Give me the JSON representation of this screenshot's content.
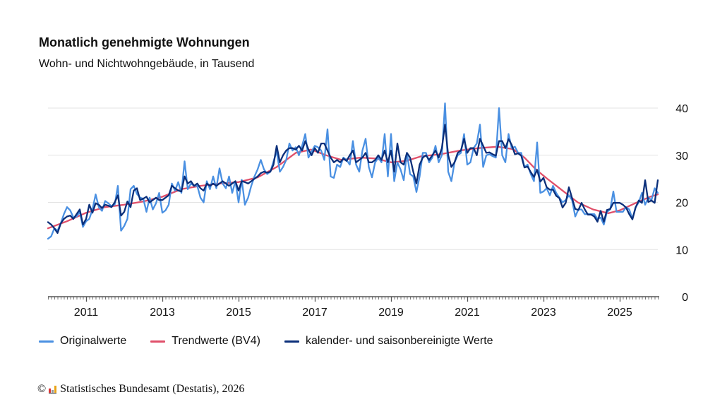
{
  "colors": {
    "original": "#4a90e2",
    "trend": "#e0506a",
    "adjusted": "#0b2f7a",
    "grid": "#e3e3e3",
    "axis": "#333333"
  },
  "chart_data": {
    "type": "line",
    "title": "Monatlich genehmigte Wohnungen",
    "subtitle": "Wohn- und Nichtwohngebäude, in Tausend",
    "xlabel": "",
    "ylabel": "",
    "xlim": [
      2010.0,
      2026.0
    ],
    "ylim": [
      0,
      40
    ],
    "y_ticks": [
      0,
      10,
      20,
      30,
      40
    ],
    "x_tick_labels": [
      "2011",
      "2013",
      "2015",
      "2017",
      "2019",
      "2021",
      "2023",
      "2025"
    ],
    "x_tick_years": [
      2011,
      2013,
      2015,
      2017,
      2019,
      2021,
      2023,
      2025
    ],
    "grid": true,
    "legend_position": "bottom-left",
    "start": "2010-01",
    "frequency": "monthly",
    "series": [
      {
        "name": "Originalwerte",
        "key": "original",
        "values": [
          12.3,
          12.8,
          14.5,
          14,
          15.5,
          17.5,
          19,
          18.3,
          16.8,
          17,
          18,
          14.8,
          16,
          16.5,
          18.5,
          21.7,
          19,
          18.2,
          20.3,
          19.8,
          19.2,
          19.5,
          23.5,
          14,
          15,
          16.5,
          22.8,
          23.5,
          21.8,
          21,
          20.8,
          18,
          21,
          18.5,
          19.8,
          22,
          17.8,
          18.3,
          19.5,
          24,
          22.5,
          24.3,
          22,
          28.7,
          22.8,
          24,
          23.5,
          23.5,
          21,
          20,
          24.5,
          22.8,
          25.5,
          23,
          27.2,
          24,
          23,
          25.5,
          22,
          24.5,
          20,
          24.8,
          19.5,
          21,
          23.5,
          25.5,
          27,
          29,
          27,
          26,
          26.5,
          28.7,
          30.8,
          26.5,
          27.5,
          29,
          32.5,
          31,
          31.7,
          30,
          32,
          34.5,
          29.5,
          30.8,
          32,
          31.7,
          31,
          29,
          35.5,
          25.5,
          25.2,
          28,
          27.5,
          29.5,
          29,
          28,
          33,
          28,
          26.5,
          31,
          33.5,
          27.5,
          25.3,
          28.5,
          29.5,
          28.5,
          34.5,
          25.5,
          34.5,
          24.5,
          28.5,
          27,
          24.7,
          30.5,
          26,
          25.5,
          22.2,
          25.5,
          30.5,
          30.5,
          28.5,
          29.5,
          32,
          28.5,
          30,
          41,
          26.5,
          24.5,
          28.5,
          30,
          30.5,
          34.5,
          28,
          28.5,
          31.5,
          32.5,
          36.5,
          27.5,
          30,
          30.2,
          29.8,
          29.5,
          40,
          30,
          28.5,
          34.5,
          31.5,
          31.8,
          30.5,
          30.5,
          27.5,
          28,
          26,
          24.5,
          32.7,
          22,
          22.3,
          23,
          21.5,
          23.5,
          22,
          21,
          20,
          20.5,
          21.5,
          20.5,
          17,
          18.5,
          18.5,
          17.5,
          17.5,
          17.5,
          17.5,
          16.5,
          16.8,
          15.3,
          18,
          18.5,
          22.3,
          18,
          18,
          18,
          19,
          18.5,
          16.5,
          19,
          20,
          22,
          19.5,
          21,
          20.5,
          23,
          22
        ]
      },
      {
        "name": "Trendwerte (BV4)",
        "key": "trend",
        "points": [
          [
            2010.0,
            14.5
          ],
          [
            2010.5,
            16
          ],
          [
            2011.0,
            17.8
          ],
          [
            2011.5,
            19
          ],
          [
            2012.0,
            19.5
          ],
          [
            2012.5,
            20.2
          ],
          [
            2013.0,
            21.2
          ],
          [
            2013.5,
            22.8
          ],
          [
            2014.0,
            23.5
          ],
          [
            2014.5,
            24
          ],
          [
            2015.0,
            24.3
          ],
          [
            2015.5,
            25.3
          ],
          [
            2016.0,
            27.5
          ],
          [
            2016.5,
            30.5
          ],
          [
            2016.9,
            31.2
          ],
          [
            2017.3,
            30
          ],
          [
            2017.7,
            29
          ],
          [
            2018.2,
            29.5
          ],
          [
            2018.6,
            29.3
          ],
          [
            2019.0,
            28.5
          ],
          [
            2019.4,
            28.8
          ],
          [
            2019.8,
            29.8
          ],
          [
            2020.3,
            30.2
          ],
          [
            2020.8,
            31
          ],
          [
            2021.3,
            31.5
          ],
          [
            2021.8,
            31.8
          ],
          [
            2022.2,
            31.3
          ],
          [
            2022.5,
            29.5
          ],
          [
            2022.8,
            27
          ],
          [
            2023.1,
            25
          ],
          [
            2023.5,
            22.5
          ],
          [
            2023.9,
            20
          ],
          [
            2024.3,
            18.5
          ],
          [
            2024.7,
            17.7
          ],
          [
            2025.0,
            18.3
          ],
          [
            2025.4,
            19.8
          ],
          [
            2025.8,
            21.2
          ],
          [
            2026.0,
            21.7
          ]
        ]
      },
      {
        "name": "kalender- und saisonbereinigte Werte",
        "key": "adjusted",
        "values": [
          15.8,
          15.3,
          14.5,
          13.5,
          15.5,
          16.5,
          17,
          17.2,
          16.5,
          17.5,
          18.5,
          15.3,
          16.5,
          19.5,
          17.8,
          19.8,
          19.5,
          18.8,
          19.5,
          19.3,
          19,
          20,
          21.5,
          17.2,
          18,
          20.2,
          19,
          22.5,
          23,
          20.5,
          20.8,
          21.2,
          20,
          20.5,
          21,
          20.5,
          20.5,
          21,
          21.5,
          23.5,
          23,
          22.5,
          22.3,
          25.5,
          24,
          24.5,
          23.5,
          24,
          23,
          22.5,
          24,
          23.5,
          24,
          23.5,
          24,
          24.5,
          24,
          23.5,
          24,
          24.5,
          22.5,
          24.5,
          24.3,
          24,
          24.5,
          25,
          25.5,
          26.2,
          26.5,
          26.3,
          26.5,
          28,
          32,
          28.5,
          30,
          31,
          31.5,
          31.5,
          31.2,
          32,
          31,
          33,
          31.2,
          30,
          31.5,
          30.5,
          32.5,
          32.5,
          31,
          29.5,
          28.5,
          29,
          28.5,
          29.3,
          28.8,
          30,
          31,
          28.5,
          29,
          29.5,
          30.5,
          28.5,
          28.5,
          29,
          30,
          29,
          31,
          28.5,
          31,
          26.5,
          32.5,
          28.5,
          28,
          30.5,
          29.5,
          26.5,
          24,
          28,
          29.5,
          30,
          29,
          30,
          31,
          29.5,
          31.5,
          36.5,
          30,
          27.5,
          28.5,
          30.5,
          31,
          33.5,
          30.5,
          31.5,
          31.5,
          30,
          33.5,
          32,
          30.5,
          30.6,
          30.2,
          29.9,
          33,
          33,
          31.5,
          33.4,
          32.2,
          30.2,
          30.4,
          29.9,
          27.4,
          27.6,
          26.4,
          25.4,
          26.9,
          24.4,
          25.2,
          23.2,
          22.7,
          22.7,
          21.4,
          20.9,
          18.9,
          19.9,
          23.2,
          20.9,
          18.6,
          18.4,
          19.9,
          18.5,
          17.4,
          17.4,
          17,
          15.9,
          18.2,
          15.9,
          18.4,
          18.6,
          19.9,
          19.9,
          19.9,
          19.5,
          18.9,
          17.5,
          16.4,
          18.9,
          20.4,
          19.9,
          24.7,
          20.1,
          20.4,
          19.9,
          24.7
        ]
      }
    ]
  },
  "legend": {
    "items": [
      "Originalwerte",
      "Trendwerte (BV4)",
      "kalender- und saisonbereinigte Werte"
    ]
  },
  "footer": {
    "copyright_symbol": "©",
    "text": "Statistisches Bundesamt (Destatis), 2026",
    "logo_text": "Destatis"
  }
}
